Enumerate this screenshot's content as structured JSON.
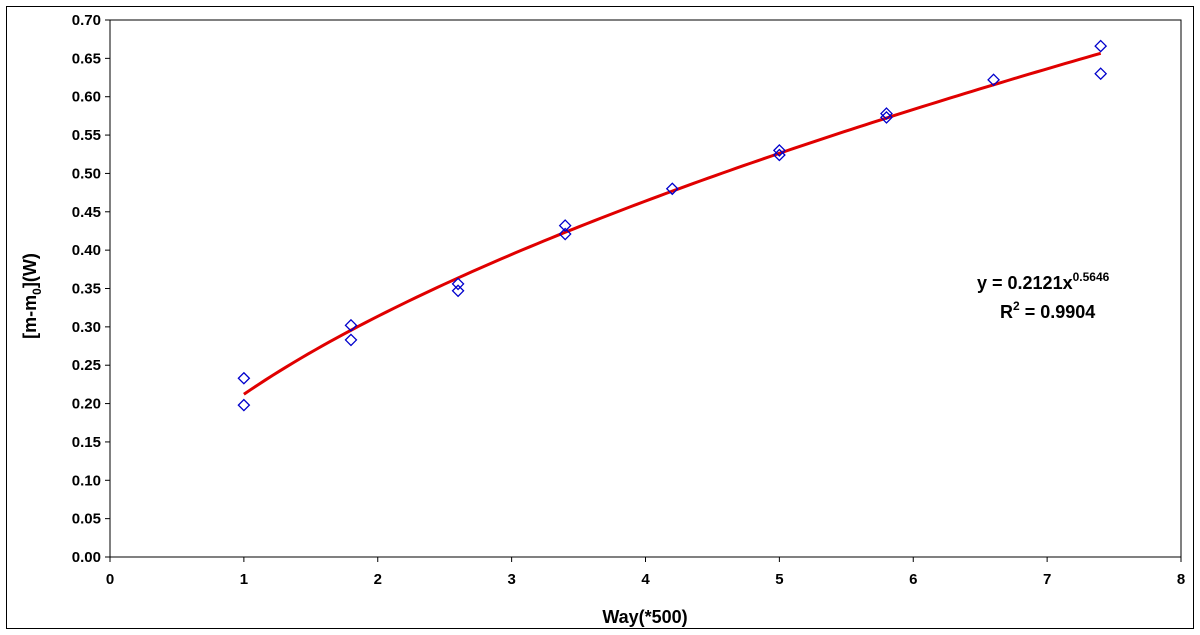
{
  "chart_data": {
    "type": "scatter",
    "title": "",
    "xlabel": "Way(*500)",
    "ylabel_main": "[m-m",
    "ylabel_sub": "0",
    "ylabel_tail": "](W)",
    "xlim": [
      0,
      8
    ],
    "ylim": [
      0,
      0.7
    ],
    "x_ticks": [
      0,
      1,
      2,
      3,
      4,
      5,
      6,
      7,
      8
    ],
    "y_ticks": [
      "0.00",
      "0.05",
      "0.10",
      "0.15",
      "0.20",
      "0.25",
      "0.30",
      "0.35",
      "0.40",
      "0.45",
      "0.50",
      "0.55",
      "0.60",
      "0.65",
      "0.70"
    ],
    "grid": false,
    "series": [
      {
        "marker": "diamond-open",
        "color": "#0000cc",
        "points": [
          [
            1.0,
            0.233
          ],
          [
            1.0,
            0.198
          ],
          [
            1.8,
            0.302
          ],
          [
            1.8,
            0.283
          ],
          [
            2.6,
            0.356
          ],
          [
            2.6,
            0.347
          ],
          [
            3.4,
            0.432
          ],
          [
            3.4,
            0.421
          ],
          [
            4.2,
            0.48
          ],
          [
            5.0,
            0.53
          ],
          [
            5.0,
            0.524
          ],
          [
            5.8,
            0.578
          ],
          [
            5.8,
            0.573
          ],
          [
            6.6,
            0.622
          ],
          [
            7.4,
            0.666
          ],
          [
            7.4,
            0.63
          ]
        ]
      }
    ],
    "trendline": {
      "type": "power",
      "a": 0.2121,
      "b": 0.5646,
      "x_range": [
        1.0,
        7.4
      ],
      "color": "#e00000"
    },
    "annotation": {
      "eq_prefix": "y = 0.2121x",
      "eq_exponent": "0.5646",
      "r2_prefix": "R",
      "r2_sup": "2",
      "r2_suffix": " = 0.9904"
    }
  }
}
